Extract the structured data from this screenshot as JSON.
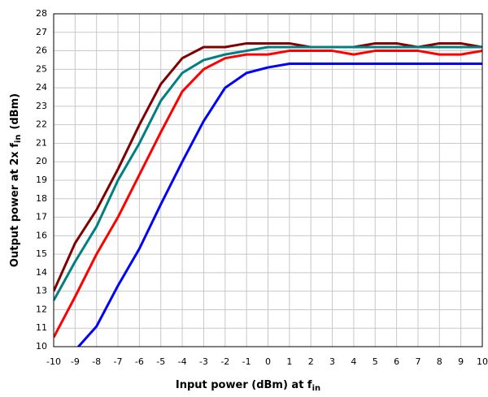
{
  "chart_data": {
    "type": "line",
    "xlabel": {
      "text": "Input power (dBm) at f",
      "sub": "in"
    },
    "ylabel": {
      "text": "Output power at 2x f",
      "sub": "in",
      "suffix": "(dBm)"
    },
    "x": [
      -10,
      -9,
      -8,
      -7,
      -6,
      -5,
      -4,
      -3,
      -2,
      -1,
      0,
      1,
      2,
      3,
      4,
      5,
      6,
      7,
      8,
      9,
      10
    ],
    "series": [
      {
        "color": "#800000",
        "values": [
          13.0,
          15.6,
          17.4,
          19.6,
          22.0,
          24.2,
          25.6,
          26.2,
          26.2,
          26.4,
          26.4,
          26.4,
          26.2,
          26.2,
          26.2,
          26.4,
          26.4,
          26.2,
          26.4,
          26.4,
          26.2
        ]
      },
      {
        "color": "#008080",
        "values": [
          12.5,
          14.6,
          16.5,
          19.0,
          21.0,
          23.3,
          24.8,
          25.5,
          25.8,
          26.0,
          26.2,
          26.2,
          26.2,
          26.2,
          26.2,
          26.2,
          26.2,
          26.2,
          26.2,
          26.2,
          26.2
        ]
      },
      {
        "color": "#ff0000",
        "values": [
          10.5,
          12.7,
          15.0,
          17.0,
          19.3,
          21.6,
          23.8,
          25.0,
          25.6,
          25.8,
          25.8,
          26.0,
          26.0,
          26.0,
          25.8,
          26.0,
          26.0,
          26.0,
          25.8,
          25.8,
          26.0
        ]
      },
      {
        "color": "#0000ff",
        "values": [
          null,
          9.8,
          11.1,
          13.3,
          15.3,
          17.7,
          20.0,
          22.2,
          24.0,
          24.8,
          25.1,
          25.3,
          25.3,
          25.3,
          25.3,
          25.3,
          25.3,
          25.3,
          25.3,
          25.3,
          25.3
        ]
      }
    ],
    "xlim": [
      -10,
      10
    ],
    "xticks": [
      -10,
      -9,
      -8,
      -7,
      -6,
      -5,
      -4,
      -3,
      -2,
      -1,
      0,
      1,
      2,
      3,
      4,
      5,
      6,
      7,
      8,
      9,
      10
    ],
    "ylim": [
      10,
      28
    ],
    "yticks": [
      10,
      11,
      12,
      13,
      14,
      15,
      16,
      17,
      18,
      19,
      20,
      21,
      22,
      23,
      24,
      25,
      26,
      27,
      28
    ],
    "grid": true
  }
}
